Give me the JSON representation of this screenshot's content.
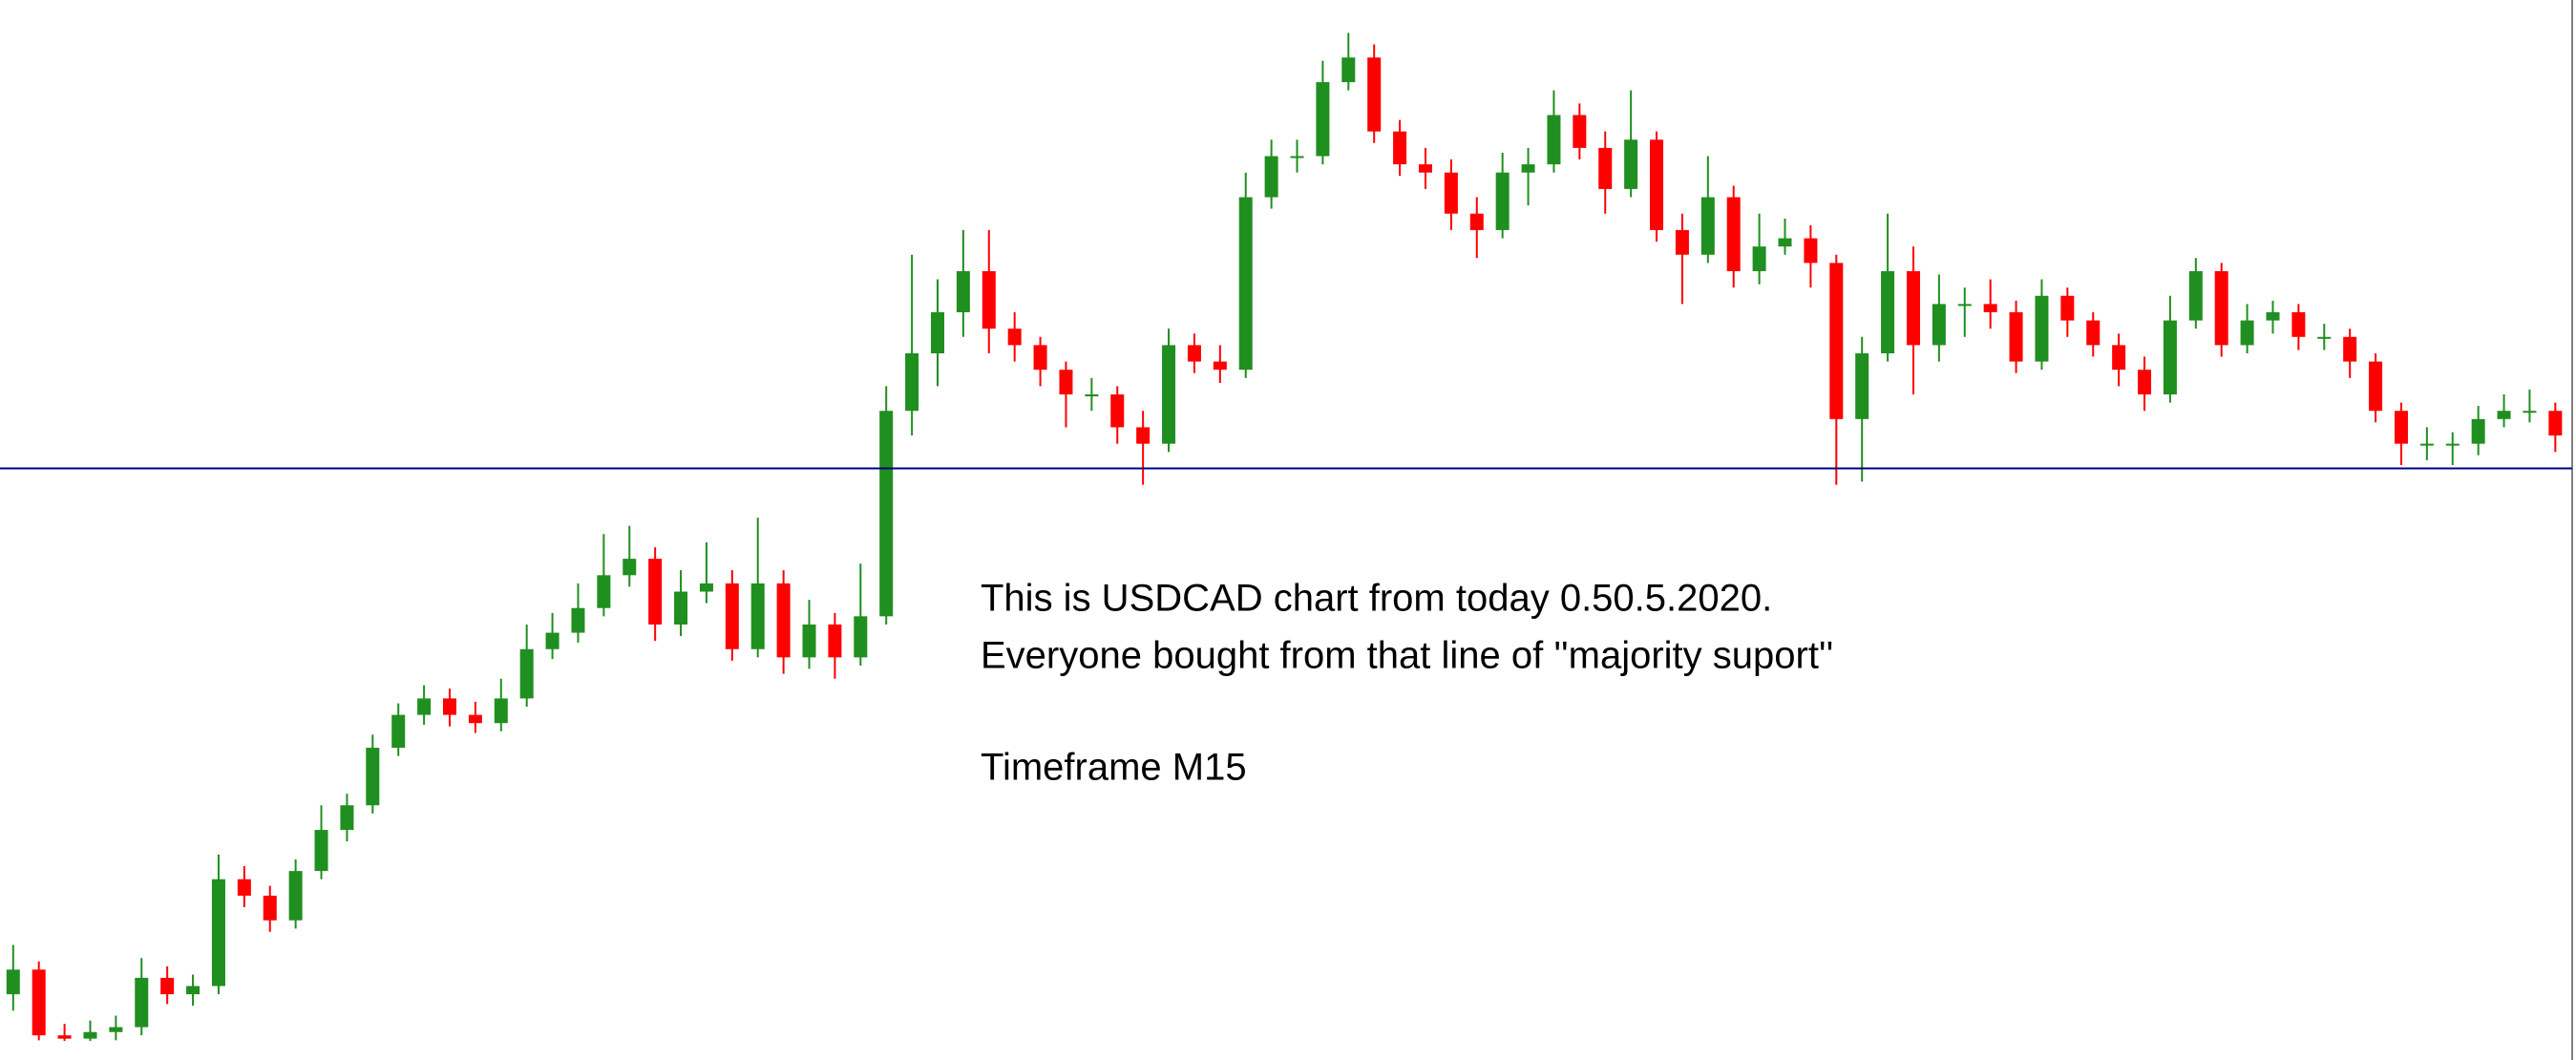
{
  "chart_data": {
    "type": "candlestick",
    "categories": [
      null,
      null,
      null,
      null,
      null,
      null,
      null,
      null,
      null,
      null,
      null,
      null,
      null,
      null,
      null,
      null,
      null,
      null,
      null,
      null,
      null,
      null,
      null,
      null,
      null,
      null,
      null,
      null,
      null,
      null,
      null,
      null,
      null,
      null,
      null,
      null,
      null,
      null,
      null,
      null,
      null,
      null,
      null,
      null,
      null,
      null,
      null,
      null,
      null,
      null,
      null,
      null,
      null,
      null,
      null,
      null,
      null,
      null,
      null,
      null,
      null,
      null,
      null,
      null,
      null,
      null,
      null,
      null,
      null,
      null,
      null,
      null,
      null,
      null,
      null,
      null,
      null,
      null,
      null,
      null,
      null,
      null,
      null,
      null,
      null,
      null,
      null,
      null,
      null,
      null,
      null,
      null,
      null,
      null,
      null,
      null,
      null,
      null,
      null,
      null
    ],
    "open": [
      40,
      55,
      15,
      13,
      17,
      20,
      50,
      40,
      45,
      110,
      100,
      85,
      115,
      140,
      155,
      190,
      210,
      220,
      210,
      205,
      220,
      250,
      260,
      275,
      295,
      305,
      265,
      285,
      290,
      250,
      290,
      245,
      265,
      245,
      270,
      395,
      430,
      455,
      480,
      445,
      435,
      420,
      405,
      405,
      385,
      375,
      435,
      425,
      420,
      525,
      550,
      550,
      595,
      610,
      565,
      545,
      540,
      515,
      505,
      540,
      545,
      575,
      555,
      530,
      560,
      505,
      490,
      525,
      480,
      495,
      500,
      485,
      390,
      430,
      480,
      435,
      460,
      460,
      455,
      425,
      465,
      450,
      435,
      420,
      405,
      450,
      480,
      435,
      450,
      455,
      440,
      440,
      425,
      395,
      375,
      375,
      375,
      390,
      395,
      395
    ],
    "high": [
      70,
      60,
      22,
      24,
      27,
      62,
      57,
      52,
      125,
      118,
      106,
      122,
      155,
      162,
      198,
      217,
      228,
      226,
      218,
      232,
      265,
      272,
      290,
      320,
      325,
      312,
      298,
      315,
      298,
      330,
      298,
      280,
      272,
      302,
      410,
      490,
      475,
      505,
      505,
      455,
      440,
      425,
      415,
      410,
      395,
      445,
      442,
      435,
      540,
      560,
      560,
      608,
      625,
      618,
      572,
      555,
      548,
      525,
      552,
      555,
      590,
      582,
      565,
      590,
      565,
      515,
      550,
      532,
      515,
      512,
      508,
      490,
      440,
      515,
      495,
      478,
      470,
      475,
      462,
      475,
      470,
      455,
      442,
      428,
      465,
      488,
      485,
      460,
      462,
      460,
      448,
      445,
      430,
      400,
      385,
      382,
      398,
      405,
      408,
      400
    ],
    "low": [
      30,
      12,
      10,
      10,
      12,
      15,
      34,
      33,
      40,
      93,
      78,
      80,
      110,
      133,
      150,
      185,
      204,
      203,
      199,
      200,
      215,
      244,
      254,
      270,
      288,
      255,
      258,
      278,
      243,
      245,
      235,
      238,
      232,
      240,
      265,
      380,
      410,
      440,
      430,
      425,
      410,
      385,
      395,
      375,
      350,
      370,
      418,
      412,
      415,
      518,
      540,
      545,
      590,
      558,
      538,
      530,
      505,
      488,
      500,
      520,
      540,
      548,
      515,
      525,
      498,
      460,
      485,
      470,
      472,
      490,
      470,
      350,
      352,
      425,
      405,
      425,
      440,
      445,
      418,
      420,
      440,
      428,
      410,
      395,
      400,
      445,
      428,
      430,
      442,
      432,
      432,
      415,
      388,
      362,
      365,
      362,
      368,
      385,
      388,
      370
    ],
    "close": [
      55,
      15,
      13,
      17,
      20,
      50,
      40,
      45,
      110,
      100,
      85,
      115,
      140,
      155,
      190,
      210,
      220,
      210,
      205,
      220,
      250,
      260,
      275,
      295,
      305,
      265,
      285,
      290,
      250,
      290,
      245,
      265,
      245,
      270,
      395,
      430,
      455,
      480,
      445,
      435,
      420,
      405,
      405,
      385,
      375,
      435,
      425,
      420,
      525,
      550,
      550,
      595,
      610,
      565,
      545,
      540,
      515,
      505,
      540,
      545,
      575,
      555,
      530,
      560,
      505,
      490,
      525,
      480,
      495,
      500,
      485,
      390,
      430,
      480,
      435,
      460,
      460,
      455,
      425,
      465,
      450,
      435,
      420,
      405,
      450,
      480,
      435,
      450,
      455,
      440,
      440,
      425,
      395,
      375,
      375,
      375,
      390,
      395,
      395,
      380
    ],
    "up_color": "#1f8f1f",
    "down_color": "#ff0000",
    "ylim": [
      0,
      645
    ],
    "hline": {
      "value": 360,
      "color": "#000080"
    },
    "annotations": [
      "This is USDCAD chart from today 0.50.5.2020.",
      "Everyone bought from that line of ''majority suport''",
      "Timeframe M15"
    ]
  }
}
